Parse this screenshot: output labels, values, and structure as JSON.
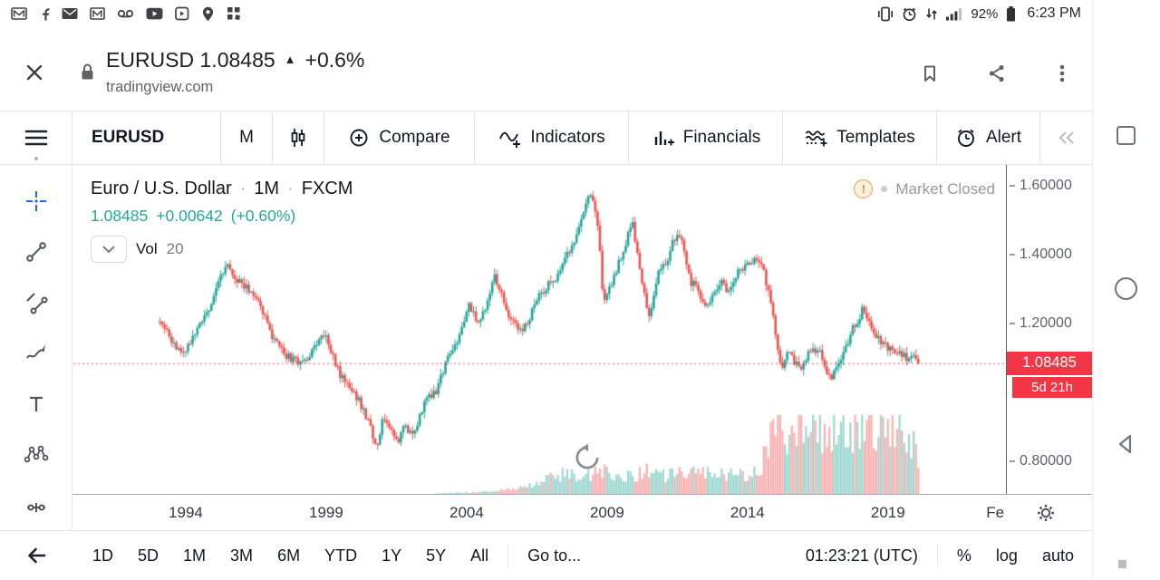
{
  "status_bar": {
    "time": "6:23 PM",
    "battery_pct": "92%",
    "left_icons": [
      "gmail-icon",
      "facebook-icon",
      "mail-icon",
      "email-icon",
      "voicemail-icon",
      "youtube-icon",
      "play-box-icon",
      "location-icon",
      "widgets-icon"
    ],
    "right_icons": [
      "vibrate-icon",
      "alarm-icon",
      "network-icon",
      "signal-icon",
      "battery-icon"
    ]
  },
  "browser_header": {
    "page_title": "EURUSD 1.08485",
    "up_arrow": "▲",
    "change_pct": "+0.6%",
    "url": "tradingview.com"
  },
  "toolbar": {
    "symbol": "EURUSD",
    "interval": "M",
    "compare": "Compare",
    "indicators": "Indicators",
    "financials": "Financials",
    "templates": "Templates",
    "alert": "Alert"
  },
  "chart": {
    "title": "Euro / U.S. Dollar",
    "separator": "·",
    "interval_label": "1M",
    "exchange": "FXCM",
    "price": "1.08485",
    "change_abs": "+0.00642",
    "change_pct": "(+0.60%)",
    "indicator_name": "Vol",
    "indicator_param": "20",
    "market_status": "Market Closed",
    "delay_badge": "!",
    "price_label": "1.08485",
    "countdown_label": "5d 21h"
  },
  "chart_data": {
    "type": "candlestick",
    "symbol": "EURUSD",
    "timeframe": "1M",
    "exchange": "FXCM",
    "title": "Euro / U.S. Dollar · 1M · FXCM",
    "last_price": 1.08485,
    "change_abs": 0.00642,
    "change_pct": 0.6,
    "market_status": "Market Closed",
    "legend": "Vol 20",
    "up_color": "#26a69a",
    "down_color": "#ef5350",
    "volume_up_color": "rgba(38,166,154,0.45)",
    "volume_down_color": "rgba(239,83,80,0.45)",
    "last_price_line_color": "#f23645",
    "x_domain": [
      1990.0,
      2023.2
    ],
    "y_domain": [
      0.705,
      1.6605
    ],
    "data_start": 1993.08,
    "data_end": 2020.09,
    "volume_height_frac": 0.24,
    "seed": 11,
    "y_ticks": [
      {
        "label": "1.60000",
        "value": 1.6
      },
      {
        "label": "1.40000",
        "value": 1.4
      },
      {
        "label": "1.20000",
        "value": 1.2
      },
      {
        "label": "0.80000",
        "value": 0.8
      }
    ],
    "x_ticks": [
      {
        "label": "1994",
        "t": 1994
      },
      {
        "label": "1999",
        "t": 1999
      },
      {
        "label": "2004",
        "t": 2004
      },
      {
        "label": "2009",
        "t": 2009
      },
      {
        "label": "2014",
        "t": 2014
      },
      {
        "label": "2019",
        "t": 2019
      },
      {
        "label": "Fe",
        "t": 2022.82
      }
    ],
    "price_anchors": [
      [
        1993.08,
        1.205
      ],
      [
        1993.4,
        1.17
      ],
      [
        1993.7,
        1.115
      ],
      [
        1994.0,
        1.13
      ],
      [
        1994.4,
        1.18
      ],
      [
        1994.8,
        1.23
      ],
      [
        1995.2,
        1.33
      ],
      [
        1995.45,
        1.375
      ],
      [
        1995.7,
        1.34
      ],
      [
        1996.1,
        1.31
      ],
      [
        1996.6,
        1.27
      ],
      [
        1997.0,
        1.175
      ],
      [
        1997.5,
        1.11
      ],
      [
        1997.9,
        1.09
      ],
      [
        1998.3,
        1.095
      ],
      [
        1998.7,
        1.145
      ],
      [
        1998.95,
        1.175
      ],
      [
        1999.1,
        1.14
      ],
      [
        1999.5,
        1.045
      ],
      [
        1999.9,
        1.015
      ],
      [
        2000.3,
        0.955
      ],
      [
        2000.7,
        0.87
      ],
      [
        2000.85,
        0.845
      ],
      [
        2001.0,
        0.935
      ],
      [
        2001.3,
        0.885
      ],
      [
        2001.55,
        0.85
      ],
      [
        2001.8,
        0.905
      ],
      [
        2002.1,
        0.875
      ],
      [
        2002.5,
        0.975
      ],
      [
        2002.9,
        1.0
      ],
      [
        2003.3,
        1.09
      ],
      [
        2003.6,
        1.14
      ],
      [
        2003.95,
        1.22
      ],
      [
        2004.1,
        1.26
      ],
      [
        2004.35,
        1.2
      ],
      [
        2004.7,
        1.24
      ],
      [
        2004.95,
        1.345
      ],
      [
        2005.2,
        1.3
      ],
      [
        2005.55,
        1.215
      ],
      [
        2005.9,
        1.18
      ],
      [
        2006.2,
        1.21
      ],
      [
        2006.5,
        1.27
      ],
      [
        2006.9,
        1.31
      ],
      [
        2007.3,
        1.345
      ],
      [
        2007.7,
        1.42
      ],
      [
        2008.0,
        1.47
      ],
      [
        2008.3,
        1.575
      ],
      [
        2008.55,
        1.555
      ],
      [
        2008.75,
        1.41
      ],
      [
        2008.85,
        1.27
      ],
      [
        2009.0,
        1.29
      ],
      [
        2009.2,
        1.33
      ],
      [
        2009.6,
        1.42
      ],
      [
        2009.9,
        1.49
      ],
      [
        2010.1,
        1.39
      ],
      [
        2010.45,
        1.22
      ],
      [
        2010.7,
        1.29
      ],
      [
        2010.9,
        1.37
      ],
      [
        2011.1,
        1.37
      ],
      [
        2011.35,
        1.45
      ],
      [
        2011.65,
        1.44
      ],
      [
        2011.95,
        1.32
      ],
      [
        2012.15,
        1.31
      ],
      [
        2012.55,
        1.24
      ],
      [
        2012.9,
        1.3
      ],
      [
        2013.1,
        1.33
      ],
      [
        2013.3,
        1.29
      ],
      [
        2013.7,
        1.355
      ],
      [
        2013.95,
        1.375
      ],
      [
        2014.35,
        1.39
      ],
      [
        2014.6,
        1.34
      ],
      [
        2014.85,
        1.25
      ],
      [
        2015.05,
        1.13
      ],
      [
        2015.2,
        1.06
      ],
      [
        2015.4,
        1.115
      ],
      [
        2015.6,
        1.1
      ],
      [
        2015.9,
        1.06
      ],
      [
        2016.15,
        1.115
      ],
      [
        2016.35,
        1.13
      ],
      [
        2016.6,
        1.11
      ],
      [
        2016.85,
        1.06
      ],
      [
        2016.95,
        1.045
      ],
      [
        2017.15,
        1.065
      ],
      [
        2017.45,
        1.12
      ],
      [
        2017.7,
        1.18
      ],
      [
        2017.95,
        1.2
      ],
      [
        2018.1,
        1.245
      ],
      [
        2018.35,
        1.2
      ],
      [
        2018.6,
        1.16
      ],
      [
        2018.9,
        1.135
      ],
      [
        2019.1,
        1.13
      ],
      [
        2019.4,
        1.12
      ],
      [
        2019.7,
        1.095
      ],
      [
        2019.95,
        1.115
      ],
      [
        2020.09,
        1.08485
      ]
    ],
    "volume_anchors": [
      [
        1993.0,
        0
      ],
      [
        2002.5,
        0.005
      ],
      [
        2004.0,
        0.02
      ],
      [
        2005.0,
        0.04
      ],
      [
        2006.0,
        0.09
      ],
      [
        2006.7,
        0.2
      ],
      [
        2007.5,
        0.27
      ],
      [
        2008.2,
        0.22
      ],
      [
        2008.8,
        0.3
      ],
      [
        2009.5,
        0.23
      ],
      [
        2010.4,
        0.3
      ],
      [
        2011.0,
        0.25
      ],
      [
        2011.8,
        0.27
      ],
      [
        2012.5,
        0.3
      ],
      [
        2013.2,
        0.27
      ],
      [
        2013.8,
        0.25
      ],
      [
        2014.4,
        0.3
      ],
      [
        2014.75,
        0.7
      ],
      [
        2015.1,
        0.95
      ],
      [
        2015.6,
        0.85
      ],
      [
        2016.1,
        0.95
      ],
      [
        2016.7,
        0.82
      ],
      [
        2017.2,
        0.78
      ],
      [
        2017.8,
        0.95
      ],
      [
        2018.2,
        1.0
      ],
      [
        2018.7,
        0.9
      ],
      [
        2019.1,
        0.95
      ],
      [
        2019.5,
        0.82
      ],
      [
        2019.9,
        0.65
      ],
      [
        2020.09,
        0.5
      ]
    ]
  },
  "bottom_bar": {
    "ranges": [
      "1D",
      "5D",
      "1M",
      "3M",
      "6M",
      "YTD",
      "1Y",
      "5Y",
      "All"
    ],
    "goto": "Go to...",
    "clock": "01:23:21 (UTC)",
    "percent": "%",
    "log": "log",
    "auto": "auto"
  }
}
